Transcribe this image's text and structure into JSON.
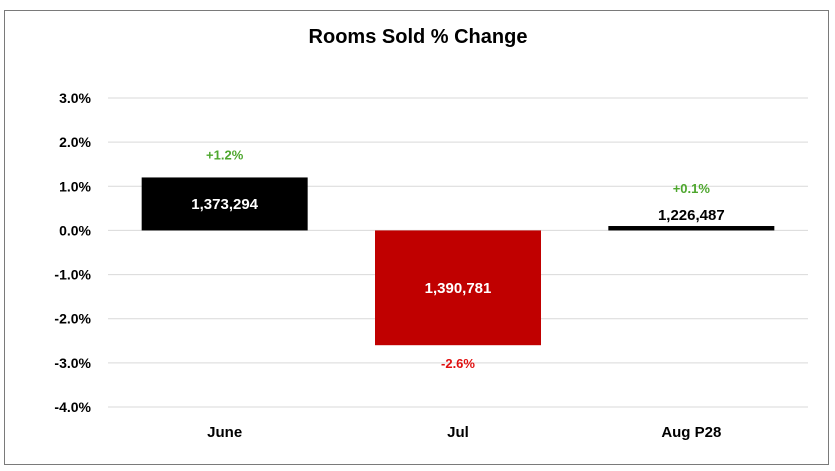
{
  "chart_data": {
    "type": "bar",
    "title": "Rooms Sold % Change",
    "xlabel": "",
    "ylabel": "",
    "categories": [
      "June",
      "Jul",
      "Aug P28"
    ],
    "values": [
      1.2,
      -2.6,
      0.1
    ],
    "value_labels": [
      "+1.2%",
      "-2.6%",
      "+0.1%"
    ],
    "bar_labels": [
      "1,373,294",
      "1,390,781",
      "1,226,487"
    ],
    "ylim": [
      -4.0,
      3.0
    ],
    "yticks": [
      3.0,
      2.0,
      1.0,
      0.0,
      -1.0,
      -2.0,
      -3.0,
      -4.0
    ],
    "ytick_labels": [
      "3.0%",
      "2.0%",
      "1.0%",
      "0.0%",
      "-1.0%",
      "-2.0%",
      "-3.0%",
      "-4.0%"
    ],
    "bar_colors": [
      "#000000",
      "#c00000",
      "#000000"
    ],
    "bar_label_colors": [
      "#ffffff",
      "#ffffff",
      "#000000"
    ],
    "value_label_colors": [
      "#4ea72e",
      "#e01010",
      "#4ea72e"
    ],
    "grid": true,
    "legend": "none"
  }
}
